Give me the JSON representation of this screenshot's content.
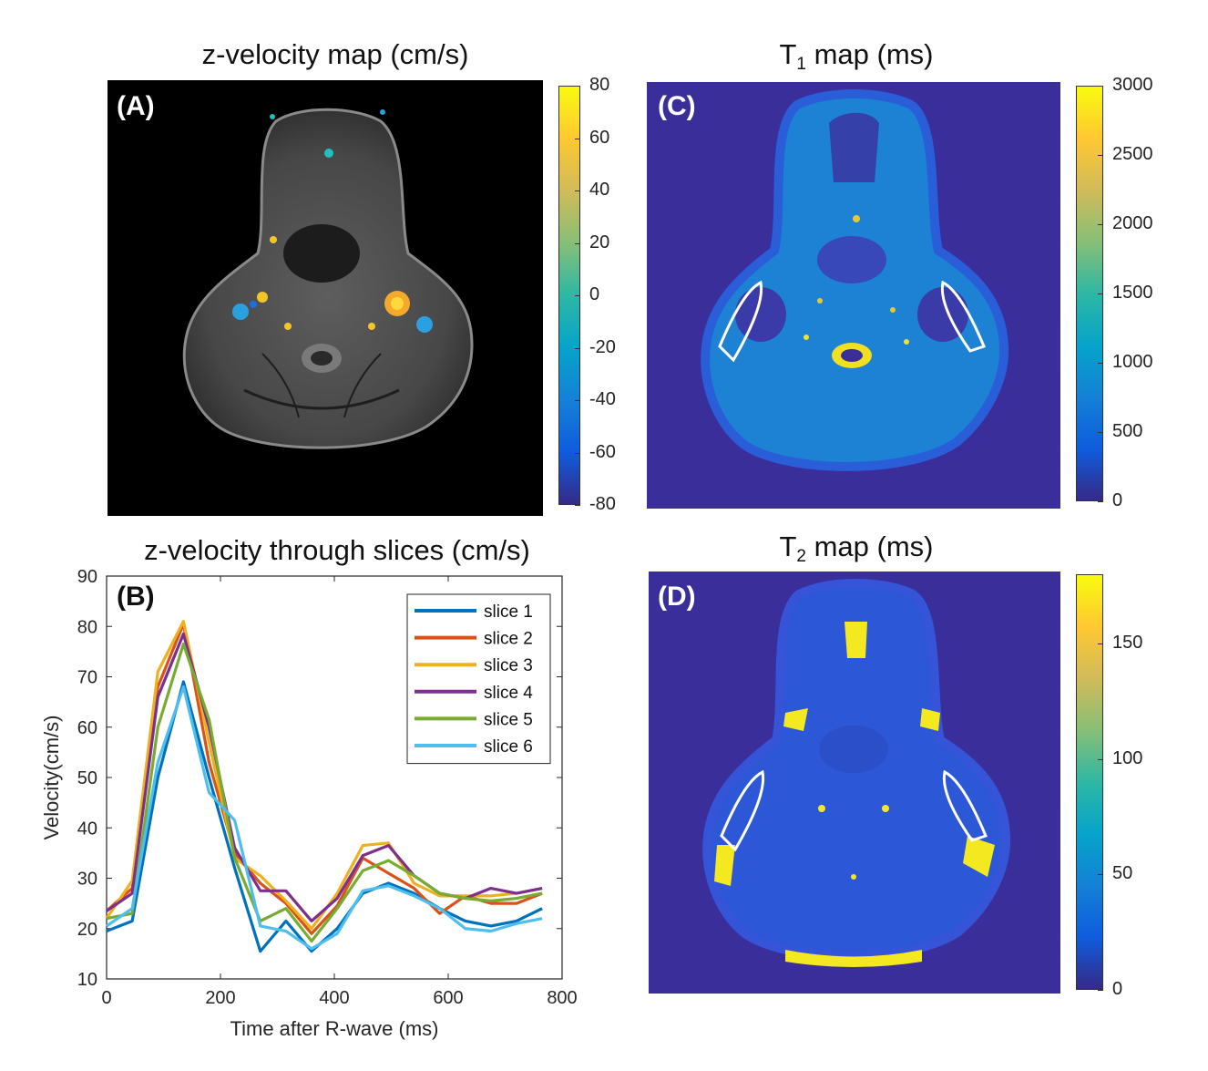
{
  "panels": {
    "A": {
      "label": "(A)",
      "title": "z-velocity map (cm/s)",
      "colorbar": {
        "min": -80,
        "max": 80,
        "ticks": [
          "80",
          "60",
          "40",
          "20",
          "0",
          "-20",
          "-40",
          "-60",
          "-80"
        ]
      }
    },
    "B": {
      "label": "(B)",
      "title": "z-velocity through slices (cm/s)"
    },
    "C": {
      "label": "(C)",
      "title_main": "T",
      "title_sub": "1",
      "title_rest": " map (ms)",
      "colorbar": {
        "min": 0,
        "max": 3000,
        "ticks": [
          "3000",
          "2500",
          "2000",
          "1500",
          "1000",
          "500",
          "0"
        ]
      }
    },
    "D": {
      "label": "(D)",
      "title_main": "T",
      "title_sub": "2",
      "title_rest": " map (ms)",
      "colorbar": {
        "min": 0,
        "max": 180,
        "ticks": [
          "150",
          "100",
          "50",
          "0"
        ],
        "tick_values": [
          150,
          100,
          50,
          0
        ]
      }
    }
  },
  "colors": {
    "parula": [
      "#352a87",
      "#0f5cdd",
      "#1481d6",
      "#06a4ca",
      "#2eb7a4",
      "#87bf77",
      "#d1bb59",
      "#fec832",
      "#f9fb0e"
    ],
    "background_map": "#3a2e9b",
    "mri_black": "#000000"
  },
  "chart_data": {
    "type": "line",
    "title": "z-velocity through slices (cm/s)",
    "xlabel": "Time after R-wave (ms)",
    "ylabel": "Velocity(cm/s)",
    "xlim": [
      0,
      800
    ],
    "ylim": [
      10,
      90
    ],
    "xticks": [
      0,
      200,
      400,
      600,
      800
    ],
    "yticks": [
      10,
      20,
      30,
      40,
      50,
      60,
      70,
      80,
      90
    ],
    "legend_position": "top-right",
    "x": [
      0,
      45,
      90,
      135,
      180,
      225,
      270,
      315,
      360,
      405,
      450,
      495,
      540,
      585,
      630,
      675,
      720,
      765
    ],
    "series": [
      {
        "name": "slice 1",
        "color": "#0072bd",
        "values": [
          19.5,
          21.5,
          50,
          69,
          50,
          32,
          15.5,
          21.5,
          15.5,
          20,
          27,
          29,
          27,
          24,
          21.5,
          20.5,
          21.5,
          24
        ]
      },
      {
        "name": "slice 2",
        "color": "#d95319",
        "values": [
          23.5,
          28,
          68,
          80.5,
          53,
          35,
          29,
          25,
          19,
          24.5,
          34,
          31,
          28,
          23,
          26.5,
          25,
          25,
          27
        ]
      },
      {
        "name": "slice 3",
        "color": "#edb120",
        "values": [
          22,
          29.5,
          71,
          81,
          57,
          34,
          30.5,
          25.5,
          20,
          27,
          36.5,
          37,
          29,
          26.5,
          26.5,
          26.5,
          27,
          28
        ]
      },
      {
        "name": "slice 4",
        "color": "#7e2f8e",
        "values": [
          23.5,
          27,
          66,
          78.5,
          60,
          36,
          27.5,
          27.5,
          21.5,
          26,
          34.5,
          36.5,
          30.5,
          27,
          26,
          28,
          27,
          28
        ]
      },
      {
        "name": "slice 5",
        "color": "#77ac30",
        "values": [
          22,
          23,
          60,
          76.5,
          61.5,
          34,
          21.5,
          24,
          17.5,
          24,
          31.5,
          33.5,
          30.5,
          27,
          26,
          25.5,
          26,
          27
        ]
      },
      {
        "name": "slice 6",
        "color": "#4dbeee",
        "values": [
          20.5,
          24,
          53,
          68,
          47,
          41.5,
          20.5,
          19.5,
          16,
          19,
          27.5,
          28.5,
          26.5,
          24,
          20,
          19.5,
          21,
          22
        ]
      }
    ]
  }
}
